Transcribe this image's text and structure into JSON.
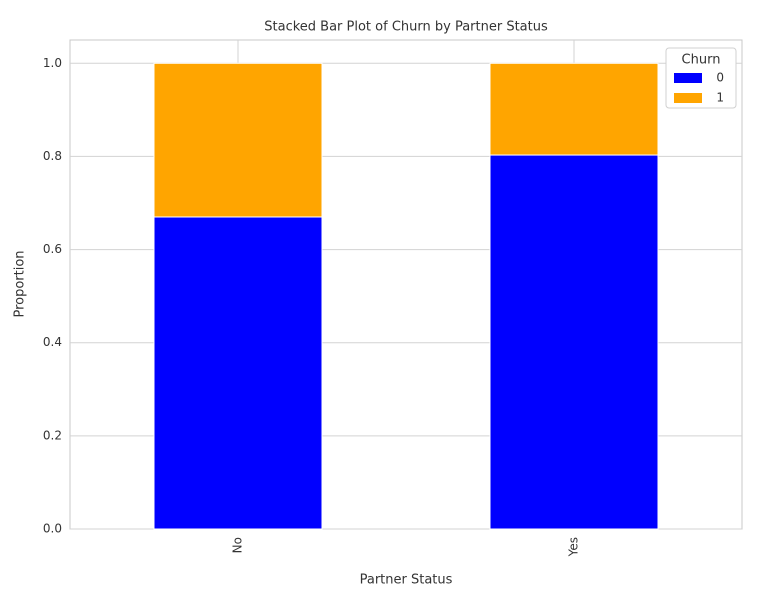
{
  "chart_data": {
    "type": "stacked_bar",
    "title": "Stacked Bar Plot of Churn by Partner Status",
    "x_label": "Partner Status",
    "y_label": "Proportion",
    "categories": [
      "No",
      "Yes"
    ],
    "series": [
      {
        "name": "0",
        "color": "#0000ff",
        "values": [
          0.67,
          0.803
        ]
      },
      {
        "name": "1",
        "color": "#ffa500",
        "values": [
          0.33,
          0.197
        ]
      }
    ],
    "ylim": [
      0,
      1.05
    ],
    "yticks": [
      {
        "value": 0,
        "label": "0.0"
      },
      0.2,
      0.4,
      0.6,
      0.8,
      {
        "value": 1,
        "label": "1.0"
      }
    ],
    "grid": true,
    "legend": "upper right",
    "legend_title": "Churn"
  }
}
